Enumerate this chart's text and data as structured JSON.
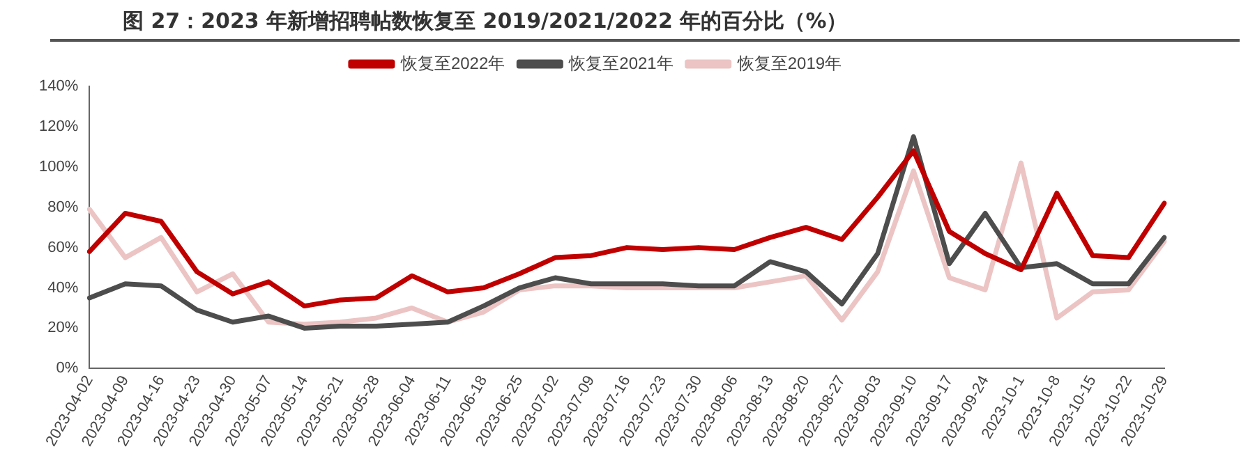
{
  "chart_data": {
    "type": "line",
    "title": "图 27：2023 年新增招聘帖数恢复至 2019/2021/2022 年的百分比（%）",
    "categories": [
      "2023-04-02",
      "2023-04-09",
      "2023-04-16",
      "2023-04-23",
      "2023-04-30",
      "2023-05-07",
      "2023-05-14",
      "2023-05-21",
      "2023-05-28",
      "2023-06-04",
      "2023-06-11",
      "2023-06-18",
      "2023-06-25",
      "2023-07-02",
      "2023-07-09",
      "2023-07-16",
      "2023-07-23",
      "2023-07-30",
      "2023-08-06",
      "2023-08-13",
      "2023-08-20",
      "2023-08-27",
      "2023-09-03",
      "2023-09-10",
      "2023-09-17",
      "2023-09-24",
      "2023-10-1",
      "2023-10-8",
      "2023-10-15",
      "2023-10-22",
      "2023-10-29"
    ],
    "series": [
      {
        "name": "恢复至2022年",
        "color": "#c00000",
        "values": [
          58,
          77,
          73,
          48,
          37,
          43,
          31,
          34,
          35,
          46,
          38,
          40,
          47,
          55,
          56,
          60,
          59,
          60,
          59,
          65,
          70,
          64,
          85,
          108,
          68,
          57,
          49,
          87,
          56,
          55,
          82
        ]
      },
      {
        "name": "恢复至2021年",
        "color": "#4d4d4d",
        "values": [
          35,
          42,
          41,
          29,
          23,
          26,
          20,
          21,
          21,
          22,
          23,
          31,
          40,
          45,
          42,
          42,
          42,
          41,
          41,
          53,
          48,
          32,
          57,
          115,
          52,
          77,
          50,
          52,
          42,
          42,
          65
        ]
      },
      {
        "name": "恢复至2019年",
        "color": "#ecc4c4",
        "values": [
          79,
          55,
          65,
          38,
          47,
          23,
          22,
          23,
          25,
          30,
          23,
          28,
          39,
          41,
          41,
          40,
          40,
          40,
          40,
          43,
          46,
          24,
          48,
          98,
          45,
          39,
          102,
          25,
          38,
          39,
          63
        ]
      }
    ],
    "ylim": [
      0,
      140
    ],
    "yticks": [
      {
        "value": 0,
        "label": "0%"
      },
      {
        "value": 20,
        "label": "20%"
      },
      {
        "value": 40,
        "label": "40%"
      },
      {
        "value": 60,
        "label": "60%"
      },
      {
        "value": 80,
        "label": "80%"
      },
      {
        "value": 100,
        "label": "100%"
      },
      {
        "value": 120,
        "label": "120%"
      },
      {
        "value": 140,
        "label": "140%"
      }
    ],
    "grid": false,
    "legend": "top",
    "marker": "none",
    "line_style": "solid"
  }
}
